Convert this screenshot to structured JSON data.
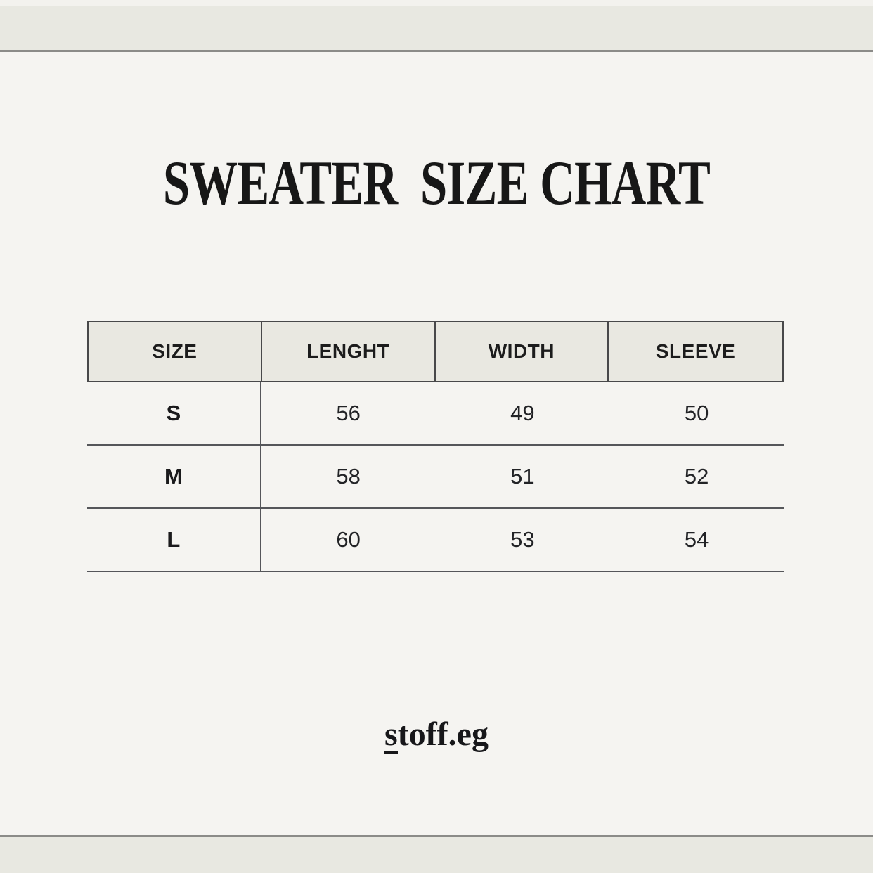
{
  "header": {
    "title": "SWEATER  SIZE CHART"
  },
  "chart_data": {
    "type": "table",
    "title": "SWEATER SIZE CHART",
    "columns": [
      "SIZE",
      "LENGHT",
      "WIDTH",
      "SLEEVE"
    ],
    "rows": [
      [
        "S",
        56,
        49,
        50
      ],
      [
        "M",
        58,
        51,
        52
      ],
      [
        "L",
        60,
        53,
        54
      ]
    ],
    "layout_hints": {
      "header_has_full_grid_borders": true,
      "body_vertical_rule_after_first_column_only": true,
      "body_horizontal_rules_full_width": true
    }
  },
  "footer": {
    "brand_initial": "s",
    "brand_rest": "toff.eg",
    "brand_full": "stoff.eg"
  },
  "colors": {
    "page_background": "#f5f4f1",
    "band_background": "#e8e8e1",
    "band_line": "#8b8b88",
    "table_header_background": "#e9e8e1",
    "table_border": "#48484a",
    "row_line": "#55565a",
    "text": "#1c1c1c"
  }
}
